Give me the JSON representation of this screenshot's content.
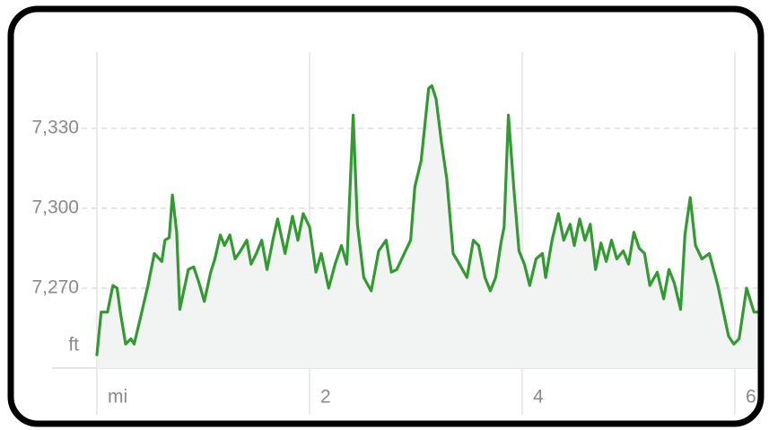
{
  "chart_data": {
    "type": "line",
    "y_unit": "ft",
    "xlim": [
      0,
      6.25
    ],
    "xticks": [
      {
        "value": 0,
        "label": "mi"
      },
      2,
      4,
      6
    ],
    "ylim": [
      7240,
      7360
    ],
    "yticks": [
      {
        "value": 7270,
        "label": "7,270"
      },
      {
        "value": 7300,
        "label": "7,300"
      },
      {
        "value": 7330,
        "label": "7,330"
      }
    ],
    "grid": true,
    "series": [
      {
        "color": "#339933",
        "fill": "#f2f4f4",
        "x": [
          0.0,
          0.04,
          0.1,
          0.15,
          0.19,
          0.22,
          0.27,
          0.32,
          0.35,
          0.41,
          0.48,
          0.54,
          0.61,
          0.64,
          0.68,
          0.71,
          0.75,
          0.78,
          0.86,
          0.91,
          0.96,
          1.01,
          1.07,
          1.11,
          1.16,
          1.2,
          1.25,
          1.3,
          1.35,
          1.41,
          1.45,
          1.5,
          1.55,
          1.6,
          1.66,
          1.7,
          1.77,
          1.84,
          1.89,
          1.94,
          2.0,
          2.06,
          2.11,
          2.18,
          2.24,
          2.3,
          2.35,
          2.41,
          2.45,
          2.51,
          2.58,
          2.65,
          2.72,
          2.77,
          2.82,
          2.89,
          2.95,
          2.99,
          3.05,
          3.12,
          3.15,
          3.19,
          3.24,
          3.29,
          3.35,
          3.41,
          3.48,
          3.54,
          3.59,
          3.65,
          3.7,
          3.75,
          3.8,
          3.83,
          3.87,
          3.92,
          3.97,
          4.02,
          4.07,
          4.13,
          4.19,
          4.22,
          4.28,
          4.34,
          4.39,
          4.45,
          4.49,
          4.54,
          4.59,
          4.64,
          4.69,
          4.74,
          4.79,
          4.84,
          4.89,
          4.95,
          5.0,
          5.05,
          5.1,
          5.15,
          5.2,
          5.27,
          5.33,
          5.38,
          5.43,
          5.49,
          5.53,
          5.58,
          5.63,
          5.69,
          5.76,
          5.84,
          5.94,
          5.99,
          6.04,
          6.11,
          6.18,
          6.23
        ],
        "values": [
          7245,
          7261,
          7261,
          7271,
          7270,
          7261,
          7249,
          7251,
          7249,
          7259,
          7271,
          7283,
          7280,
          7288,
          7289,
          7305,
          7291,
          7262,
          7277,
          7278,
          7272,
          7265,
          7276,
          7281,
          7290,
          7286,
          7290,
          7281,
          7284,
          7288,
          7279,
          7283,
          7288,
          7277,
          7289,
          7296,
          7283,
          7297,
          7288,
          7298,
          7293,
          7276,
          7283,
          7270,
          7279,
          7286,
          7279,
          7335,
          7294,
          7274,
          7269,
          7284,
          7288,
          7276,
          7277,
          7283,
          7288,
          7308,
          7318,
          7345,
          7346,
          7341,
          7325,
          7311,
          7283,
          7279,
          7274,
          7288,
          7286,
          7274,
          7269,
          7274,
          7287,
          7293,
          7335,
          7308,
          7284,
          7279,
          7271,
          7281,
          7283,
          7274,
          7288,
          7298,
          7288,
          7294,
          7286,
          7296,
          7288,
          7294,
          7277,
          7287,
          7280,
          7288,
          7281,
          7284,
          7279,
          7291,
          7285,
          7283,
          7271,
          7276,
          7266,
          7277,
          7272,
          7262,
          7290,
          7304,
          7286,
          7281,
          7283,
          7271,
          7252,
          7249,
          7251,
          7270,
          7261,
          7261
        ]
      }
    ]
  }
}
